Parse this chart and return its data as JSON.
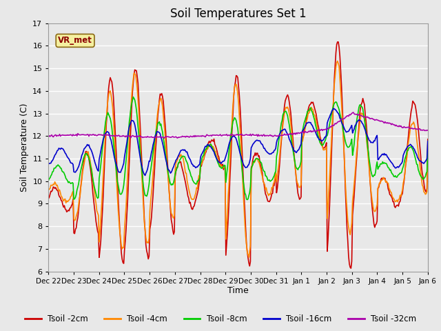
{
  "title": "Soil Temperatures Set 1",
  "xlabel": "Time",
  "ylabel": "Soil Temperature (C)",
  "ylim": [
    6.0,
    17.0
  ],
  "yticks": [
    6.0,
    7.0,
    8.0,
    9.0,
    10.0,
    11.0,
    12.0,
    13.0,
    14.0,
    15.0,
    16.0,
    17.0
  ],
  "bg_color": "#e8e8e8",
  "plot_bg_color": "#e8e8e8",
  "grid_color": "white",
  "line_colors": {
    "2cm": "#cc0000",
    "4cm": "#ff8800",
    "8cm": "#00cc00",
    "16cm": "#0000cc",
    "32cm": "#aa00aa"
  },
  "legend_labels": [
    "Tsoil -2cm",
    "Tsoil -4cm",
    "Tsoil -8cm",
    "Tsoil -16cm",
    "Tsoil -32cm"
  ],
  "annotation_text": "VR_met",
  "x_tick_labels": [
    "Dec 22",
    "Dec 23",
    "Dec 24",
    "Dec 25",
    "Dec 26",
    "Dec 27",
    "Dec 28",
    "Dec 29",
    "Dec 30",
    "Dec 31",
    "Jan 1",
    "Jan 2",
    "Jan 3",
    "Jan 4",
    "Jan 5",
    "Jan 6"
  ],
  "n_points": 480
}
